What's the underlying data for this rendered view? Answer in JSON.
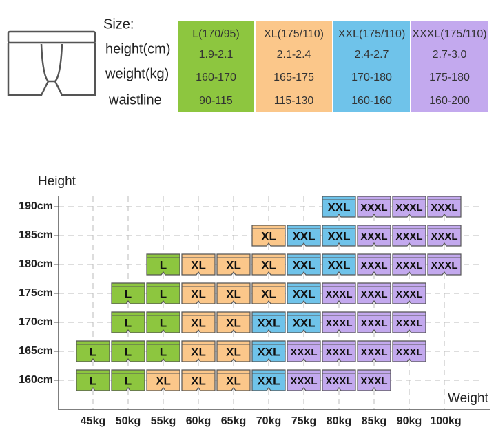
{
  "size_table": {
    "row_labels": [
      "Size:",
      "height(cm)",
      "weight(kg)",
      "waistline"
    ],
    "columns": [
      {
        "header": "L(170/95)",
        "color": "#8dc63f",
        "cells": [
          "1.9-2.1",
          "160-170",
          "90-115"
        ]
      },
      {
        "header": "XL(175/110)",
        "color": "#fbc78a",
        "cells": [
          "2.1-2.4",
          "165-175",
          "115-130"
        ]
      },
      {
        "header": "XXL(175/110)",
        "color": "#6fc3ea",
        "cells": [
          "2.4-2.7",
          "170-180",
          "160-160"
        ]
      },
      {
        "header": "XXXL(175/110)",
        "color": "#c3a9ee",
        "cells": [
          "2.7-3.0",
          "175-180",
          "160-200"
        ]
      }
    ]
  },
  "grid": {
    "y_label": "Height",
    "x_label": "Weight",
    "columns": [
      "45kg",
      "50kg",
      "55kg",
      "60kg",
      "65kg",
      "70kg",
      "75kg",
      "80kg",
      "85kg",
      "90kg",
      "100kg"
    ],
    "rows": [
      {
        "label": "190cm",
        "cells": [
          null,
          null,
          null,
          null,
          null,
          null,
          null,
          "XXL",
          "XXXL",
          "XXXL",
          "XXXL"
        ]
      },
      {
        "label": "185cm",
        "cells": [
          null,
          null,
          null,
          null,
          null,
          "XL",
          "XXL",
          "XXL",
          "XXXL",
          "XXXL",
          "XXXL"
        ]
      },
      {
        "label": "180cm",
        "cells": [
          null,
          null,
          "L",
          "XL",
          "XL",
          "XL",
          "XXL",
          "XXL",
          "XXXL",
          "XXXL",
          "XXXL"
        ]
      },
      {
        "label": "175cm",
        "cells": [
          null,
          "L",
          "L",
          "XL",
          "XL",
          "XL",
          "XXL",
          "XXXL",
          "XXXL",
          "XXXL",
          null
        ]
      },
      {
        "label": "170cm",
        "cells": [
          null,
          "L",
          "L",
          "XL",
          "XL",
          "XXL",
          "XXL",
          "XXXL",
          "XXXL",
          "XXXL",
          null
        ]
      },
      {
        "label": "165cm",
        "cells": [
          "L",
          "L",
          "L",
          "XL",
          "XL",
          "XXL",
          "XXXL",
          "XXXL",
          "XXXL",
          "XXXL",
          null
        ]
      },
      {
        "label": "160cm",
        "cells": [
          "L",
          "L",
          "XL",
          "XL",
          "XL",
          "XXL",
          "XXXL",
          "XXXL",
          "XXXL",
          null,
          null
        ]
      }
    ]
  }
}
